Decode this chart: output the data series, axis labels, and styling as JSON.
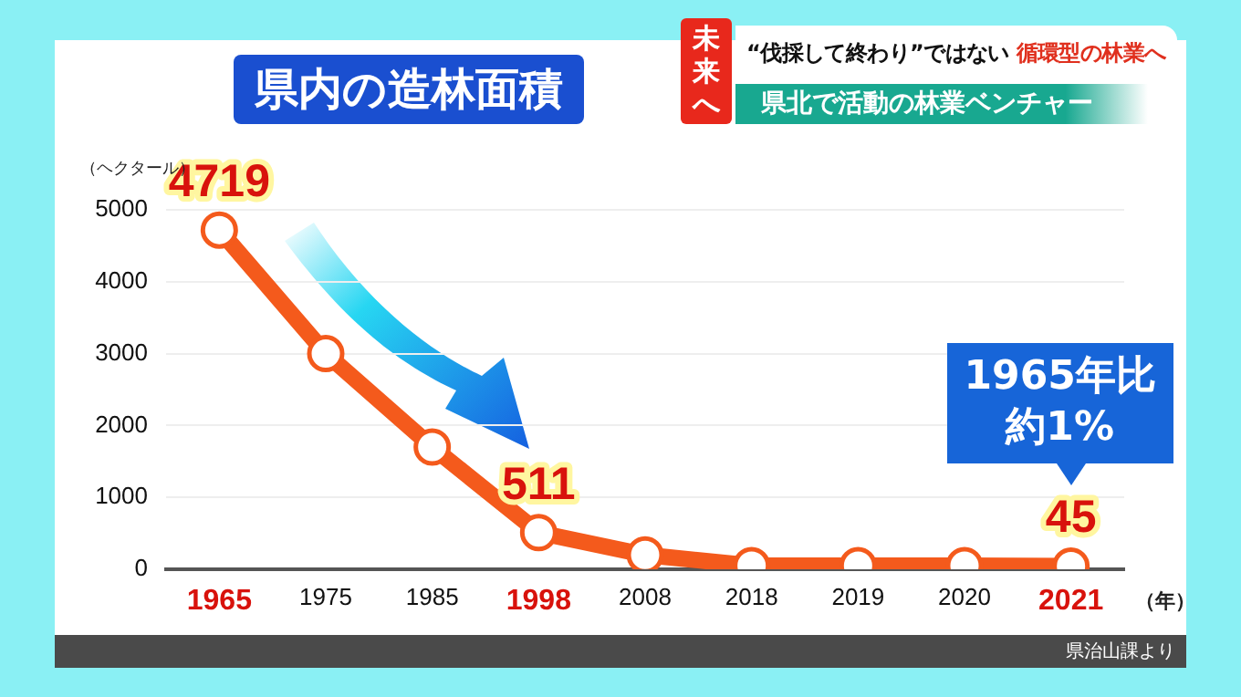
{
  "chart_data": {
    "type": "line",
    "title": "県内の造林面積",
    "xlabel": "（年）",
    "ylabel": "（ヘクタール）",
    "categories": [
      "1965",
      "1975",
      "1985",
      "1998",
      "2008",
      "2018",
      "2019",
      "2020",
      "2021"
    ],
    "series": [
      {
        "color": "#f45a1c",
        "values": [
          4719,
          3000,
          1700,
          511,
          200,
          50,
          50,
          50,
          45
        ],
        "value_labels": [
          "4719",
          null,
          null,
          "511",
          null,
          null,
          null,
          null,
          "45"
        ]
      }
    ],
    "ylim": [
      0,
      5000
    ],
    "yticks": [
      0,
      1000,
      2000,
      3000,
      4000,
      5000
    ],
    "grid": "y",
    "marker": "circle",
    "annotations": [
      "未来へ",
      "“伐採して終わり”ではない",
      "循環型の林業へ",
      "県北で活動の林業ベンチャー",
      "県治山課より",
      {
        "text": "1965年比約1%",
        "x": "2021",
        "y": 45
      }
    ]
  }
}
